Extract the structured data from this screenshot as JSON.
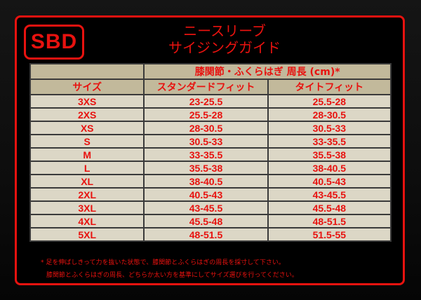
{
  "logo": "SBD",
  "title": {
    "line1": "ニースリーブ",
    "line2": "サイジングガイド"
  },
  "table": {
    "group_header": "膝関節・ふくらはぎ 周長 (cm)*",
    "columns": [
      "サイズ",
      "スタンダードフィット",
      "タイトフィット"
    ],
    "rows": [
      [
        "3XS",
        "23-25.5",
        "25.5-28"
      ],
      [
        "2XS",
        "25.5-28",
        "28-30.5"
      ],
      [
        "XS",
        "28-30.5",
        "30.5-33"
      ],
      [
        "S",
        "30.5-33",
        "33-35.5"
      ],
      [
        "M",
        "33-35.5",
        "35.5-38"
      ],
      [
        "L",
        "35.5-38",
        "38-40.5"
      ],
      [
        "XL",
        "38-40.5",
        "40.5-43"
      ],
      [
        "2XL",
        "40.5-43",
        "43-45.5"
      ],
      [
        "3XL",
        "43-45.5",
        "45.5-48"
      ],
      [
        "4XL",
        "45.5-48",
        "48-51.5"
      ],
      [
        "5XL",
        "48-51.5",
        "51.5-55"
      ]
    ]
  },
  "notes": [
    "* 足を伸ばしきって力を抜いた状態で、膝関節とふくらはぎの周長を採寸して下さい。",
    "膝関節とふくらはぎの周長、どちらか太い方を基準にしてサイズ選びを行ってください。"
  ],
  "colors": {
    "accent": "#e8120f",
    "cell": "#dcd7c6",
    "header": "#c2b99b"
  }
}
